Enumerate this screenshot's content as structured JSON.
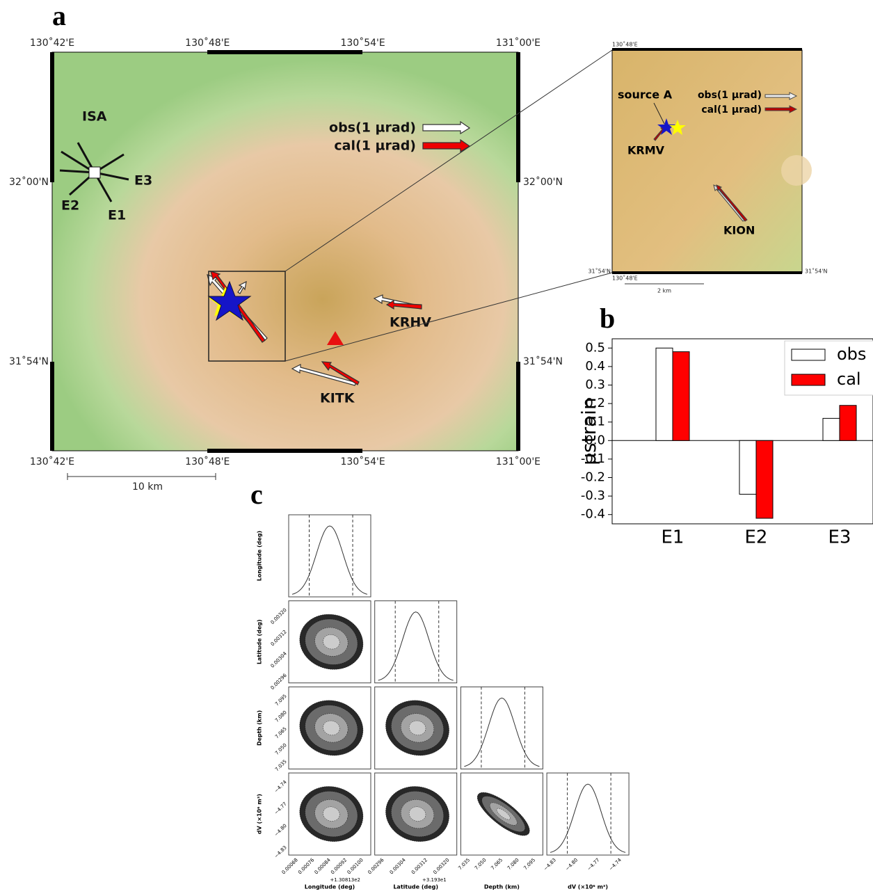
{
  "panel_labels": [
    "a",
    "b",
    "c"
  ],
  "map": {
    "lon_ticks": [
      "130˚42'E",
      "130˚48'E",
      "130˚54'E",
      "131˚00'E"
    ],
    "lat_ticks": [
      "32˚00'N",
      "31˚54'N"
    ],
    "scale": "10 km",
    "stations": [
      "ISA",
      "KRHV",
      "KITK"
    ],
    "strain_components": [
      "E1",
      "E2",
      "E3"
    ],
    "legend": [
      "obs(1 µrad)",
      "cal(1 µrad)"
    ]
  },
  "inset": {
    "corner_lon": "130˚48'E",
    "corner_lat": "31˚54'N",
    "source": "source A",
    "stations": [
      "KRMV",
      "KION"
    ],
    "scale": "2 km"
  },
  "chart_data": {
    "type": "bar",
    "ylabel": "µstrain",
    "categories": [
      "E1",
      "E2",
      "E3"
    ],
    "series": [
      {
        "name": "obs",
        "color": "#ffffff",
        "values": [
          0.5,
          -0.29,
          0.12
        ]
      },
      {
        "name": "cal",
        "color": "#ff0000",
        "values": [
          0.48,
          -0.42,
          0.19
        ]
      }
    ],
    "ylim": [
      -0.45,
      0.55
    ],
    "yticks": [
      0.5,
      0.4,
      0.3,
      0.2,
      0.1,
      {
        "value": 0,
        "label": "0.0"
      },
      -0.1,
      -0.2,
      -0.3,
      -0.4
    ],
    "grid": false,
    "legend": "upper-right"
  },
  "corner": {
    "params": [
      {
        "label": "Longitude (deg)",
        "ticks": [
          "0.00068",
          "0.00076",
          "0.00084",
          "0.00092",
          "0.00100"
        ],
        "offset": "+1.30813e2"
      },
      {
        "label": "Latitude (deg)",
        "ticks": [
          "0.00296",
          "0.00304",
          "0.00312",
          "0.00320"
        ],
        "offset": "+3.193e1"
      },
      {
        "label": "Depth (km)",
        "ticks": [
          "7.035",
          "7.050",
          "7.065",
          "7.080",
          "7.095"
        ]
      },
      {
        "label": "dV (×10⁶ m³)",
        "ticks": [
          "−4.83",
          "−4.80",
          "−4.77",
          "−4.74"
        ]
      }
    ]
  }
}
